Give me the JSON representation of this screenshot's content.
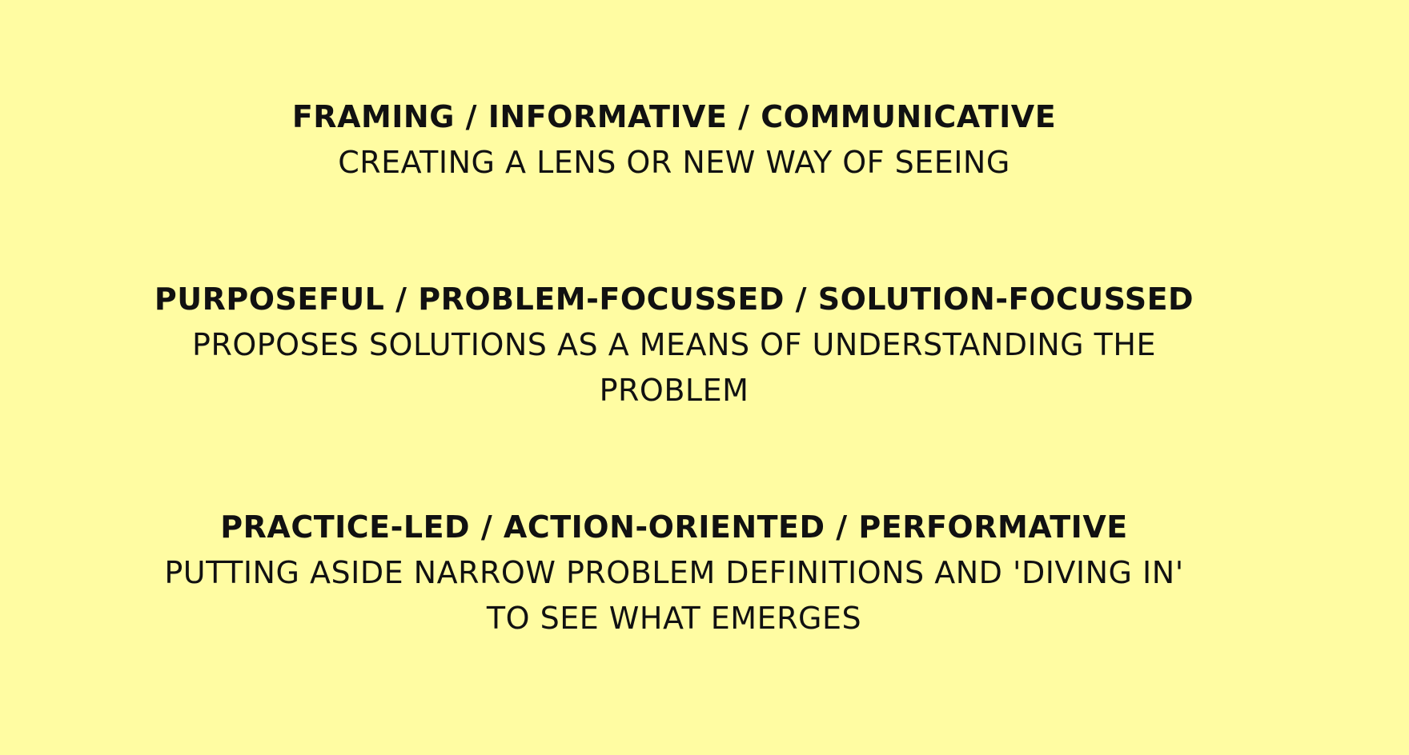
{
  "background_color": "#fffca2",
  "text_color": "#111111",
  "blocks": [
    {
      "heading": "FRAMING / INFORMATIVE / COMMUNICATIVE",
      "description": "CREATING A LENS OR NEW WAY OF SEEING"
    },
    {
      "heading": "PURPOSEFUL / PROBLEM-FOCUSSED / SOLUTION-FOCUSSED",
      "description": "PROPOSES SOLUTIONS AS A MEANS OF UNDERSTANDING THE PROBLEM"
    },
    {
      "heading": "PRACTICE-LED / ACTION-ORIENTED / PERFORMATIVE",
      "description": "PUTTING ASIDE NARROW PROBLEM DEFINITIONS AND 'DIVING IN' TO SEE WHAT EMERGES"
    }
  ]
}
